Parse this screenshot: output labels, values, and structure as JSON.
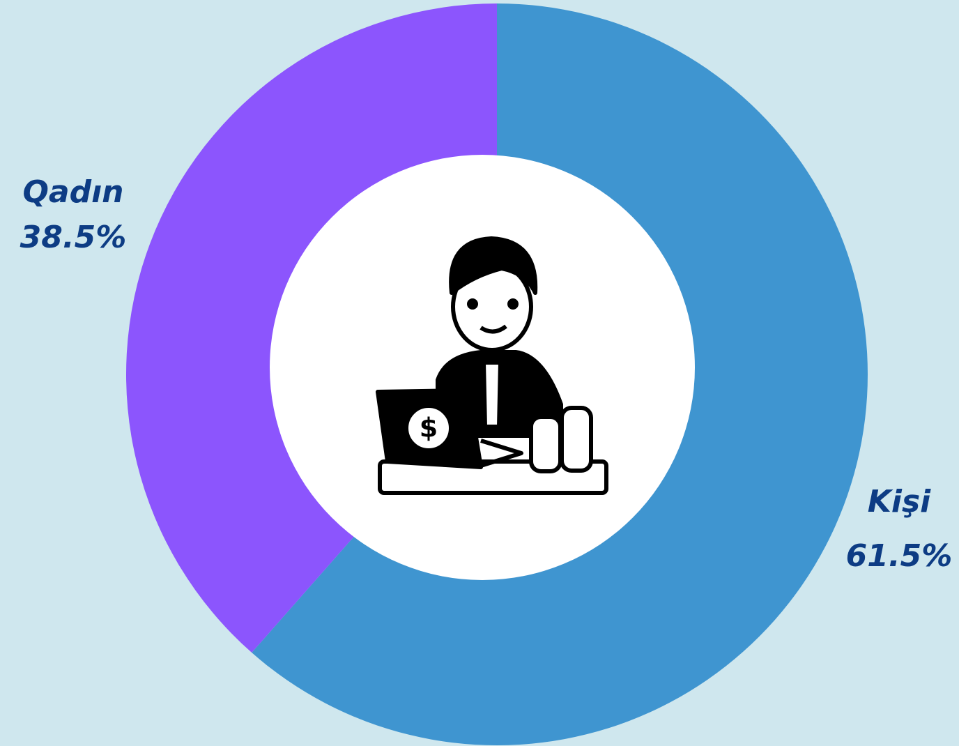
{
  "chart_data": {
    "type": "donut",
    "categories": [
      "Kişi",
      "Qadın"
    ],
    "values": [
      61.5,
      38.5
    ],
    "value_labels": [
      "61.5%",
      "38.5%"
    ],
    "colors": [
      "#3f95d0",
      "#8c55fd"
    ]
  }
}
